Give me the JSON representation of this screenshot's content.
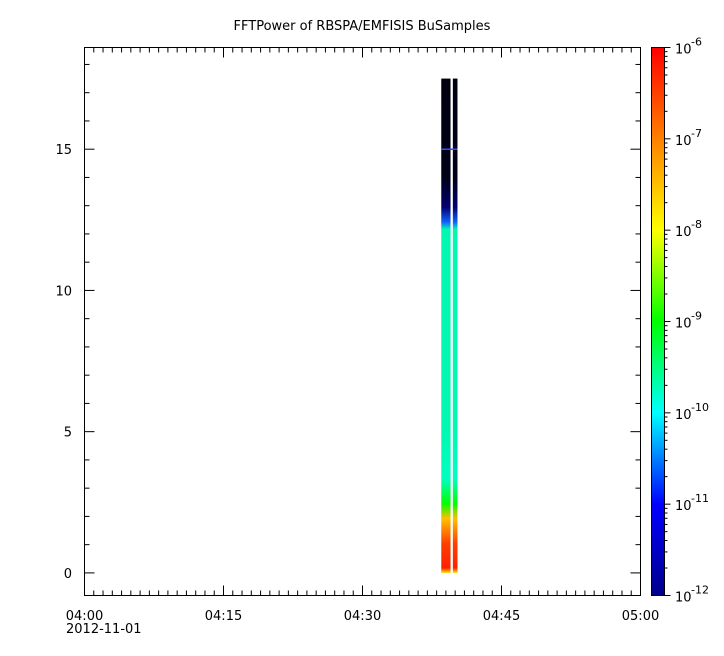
{
  "chart_data": {
    "type": "heatmap",
    "title": "FFTPower of RBSPA/EMFISIS  BuSamples",
    "xlabel": "",
    "ylabel": "",
    "x_ticks": [
      "04:00",
      "04:15",
      "04:30",
      "04:45",
      "05:00"
    ],
    "x_date_label": "2012-11-01",
    "x_range": [
      "04:00",
      "05:00"
    ],
    "y_ticks": [
      "0",
      "5",
      "10",
      "15"
    ],
    "y_range": [
      -0.8,
      18.6
    ],
    "colorbar": {
      "scale": "log",
      "range": [
        1e-12,
        1e-06
      ],
      "tick_labels": [
        "10",
        "10",
        "10",
        "10",
        "10",
        "10",
        "10"
      ],
      "tick_exponents": [
        "-12",
        "-11",
        "-10",
        "-9",
        "-8",
        "-7",
        "-6"
      ],
      "colors": [
        "#00008b",
        "#0000ff",
        "#00ffff",
        "#00ff00",
        "#ffff00",
        "#ff8000",
        "#ff0000"
      ]
    },
    "columns": [
      {
        "x_start": "04:38:30",
        "x_end": "04:39:30"
      },
      {
        "x_start": "04:39:45",
        "x_end": "04:40:15"
      }
    ],
    "grid": false
  }
}
